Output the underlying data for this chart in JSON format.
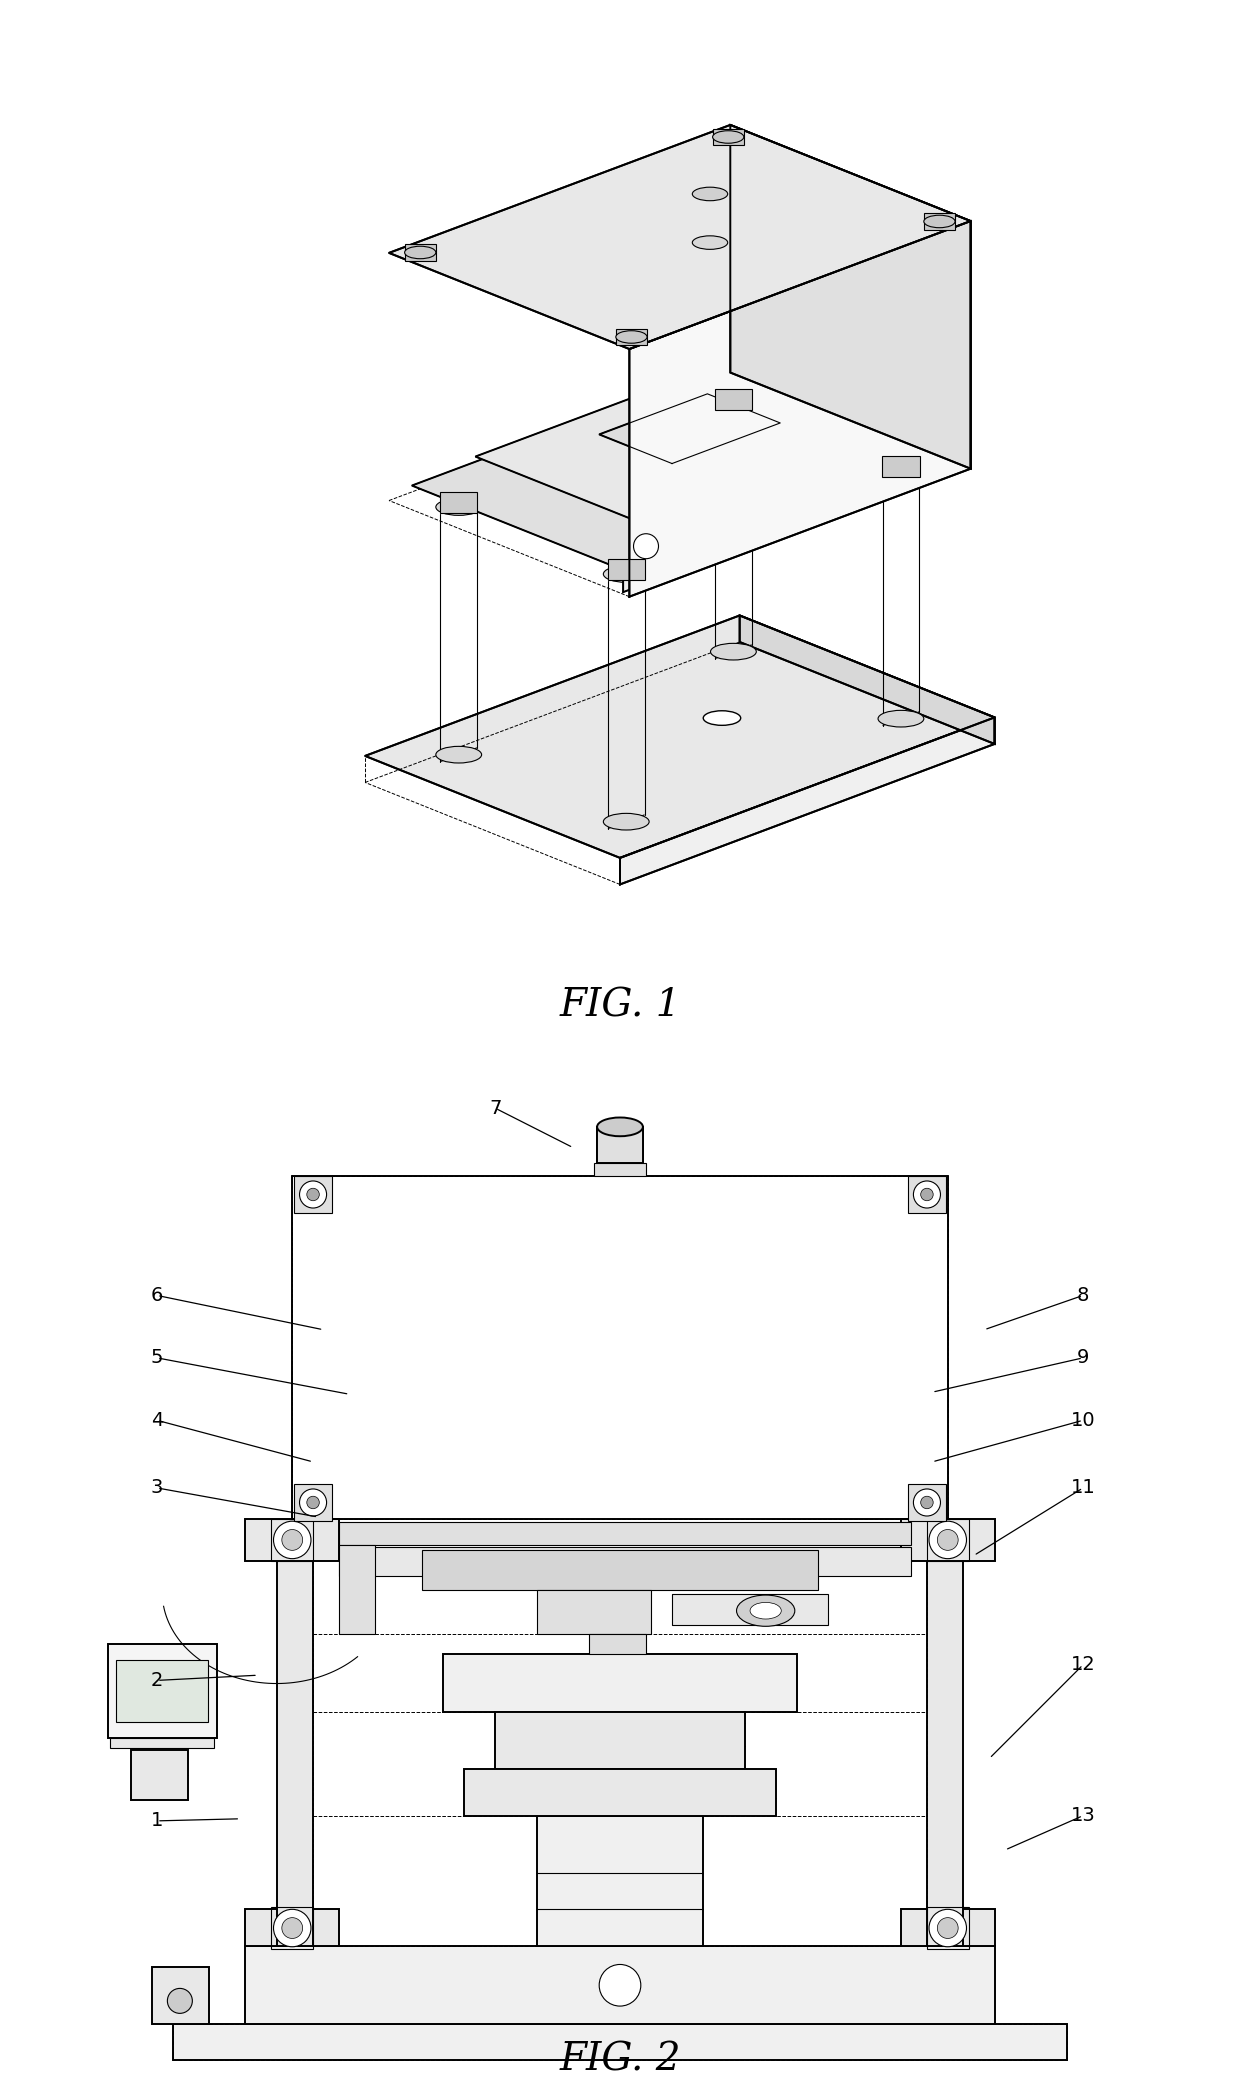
{
  "fig1_caption": "FIG. 1",
  "fig2_caption": "FIG. 2",
  "bg_color": "#ffffff",
  "line_color": "#000000",
  "lw_main": 1.4,
  "lw_thin": 0.8,
  "lw_dash": 0.7,
  "label_fontsize": 14,
  "caption_fontsize": 28,
  "fig2_labels": [
    [
      "7",
      3.8,
      9.35,
      4.55,
      8.97
    ],
    [
      "6",
      0.55,
      7.55,
      2.15,
      7.22
    ],
    [
      "5",
      0.55,
      6.95,
      2.4,
      6.6
    ],
    [
      "4",
      0.55,
      6.35,
      2.05,
      5.95
    ],
    [
      "3",
      0.55,
      5.7,
      2.1,
      5.42
    ],
    [
      "2",
      0.55,
      3.85,
      1.52,
      3.9
    ],
    [
      "1",
      0.55,
      2.5,
      1.35,
      2.52
    ],
    [
      "8",
      9.45,
      7.55,
      8.5,
      7.22
    ],
    [
      "9",
      9.45,
      6.95,
      8.0,
      6.62
    ],
    [
      "10",
      9.45,
      6.35,
      8.0,
      5.95
    ],
    [
      "11",
      9.45,
      5.7,
      8.4,
      5.05
    ],
    [
      "12",
      9.45,
      4.0,
      8.55,
      3.1
    ],
    [
      "13",
      9.45,
      2.55,
      8.7,
      2.22
    ]
  ]
}
